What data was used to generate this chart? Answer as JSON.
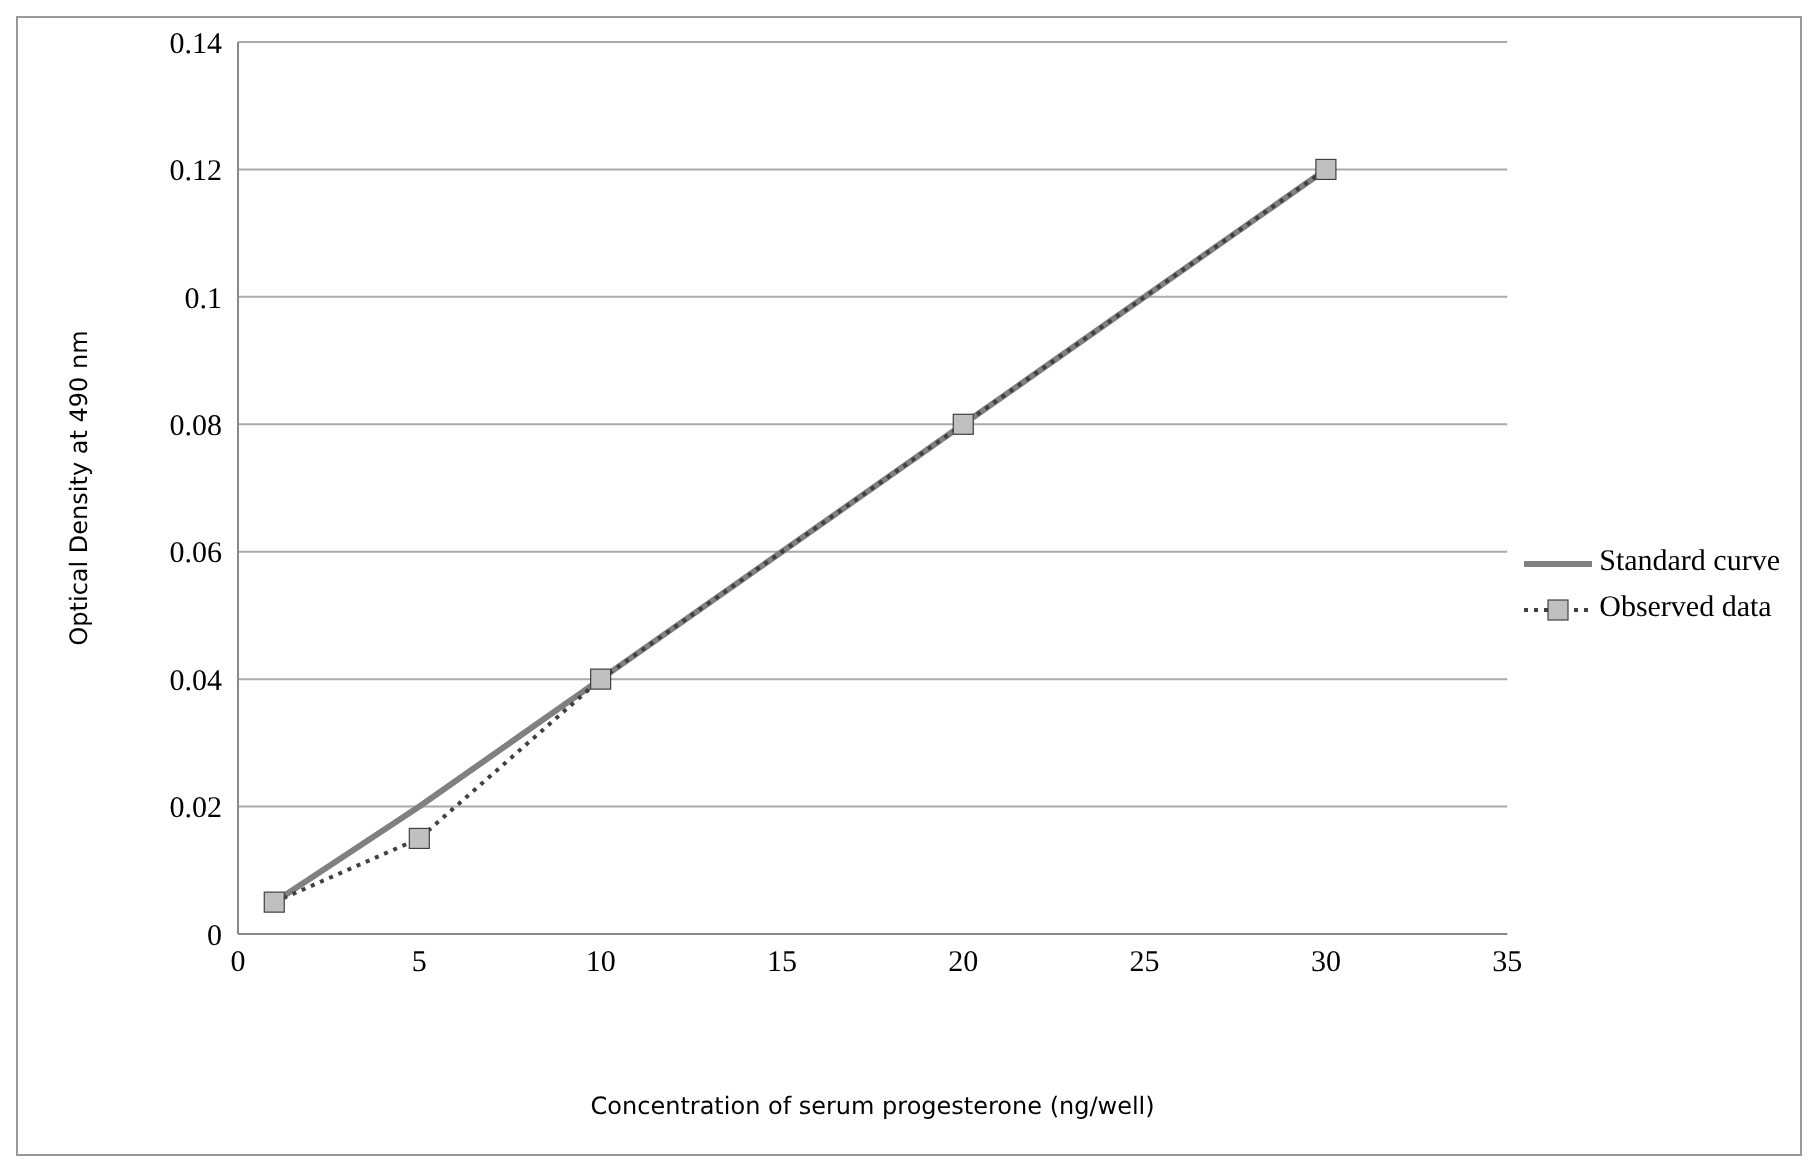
{
  "chart_data": {
    "type": "line",
    "xlabel": "Concentration  of serum progesterone (ng/well)",
    "ylabel": "Optical Density  at 490 nm",
    "x": [
      1,
      5,
      10,
      20,
      30
    ],
    "series": [
      {
        "name": "Standard curve",
        "color": "#808080",
        "values": [
          0.005,
          0.02,
          0.04,
          0.08,
          0.12
        ],
        "marker": "none",
        "line_style": "solid"
      },
      {
        "name": "Observed data",
        "color": "#404040",
        "values": [
          0.005,
          0.015,
          0.04,
          0.08,
          0.12
        ],
        "marker": "square",
        "line_style": "dotted"
      }
    ],
    "xlim": [
      0,
      35
    ],
    "xticks": [
      0,
      5,
      10,
      15,
      20,
      25,
      30,
      35
    ],
    "ylim": [
      0,
      0.14
    ],
    "yticks": [
      0,
      0.02,
      0.04,
      0.06,
      0.08,
      0.1,
      0.12,
      0.14
    ],
    "grid": "y",
    "legend": "right"
  }
}
